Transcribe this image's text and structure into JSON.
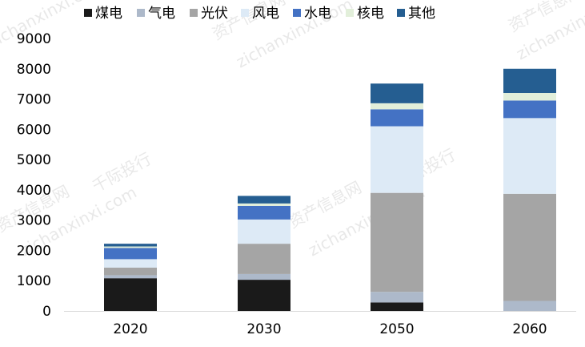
{
  "chart_data": {
    "type": "bar",
    "stacked": true,
    "title": "",
    "xlabel": "",
    "ylabel": "",
    "ylim": [
      0,
      9000
    ],
    "yticks": [
      0,
      1000,
      2000,
      3000,
      4000,
      5000,
      6000,
      7000,
      8000,
      9000
    ],
    "grid": false,
    "legend_position": "top",
    "categories": [
      "2020",
      "2030",
      "2050",
      "2060"
    ],
    "series": [
      {
        "name": "煤电",
        "color": "#1a1a1a",
        "values": [
          1080,
          1030,
          280,
          0
        ]
      },
      {
        "name": "气电",
        "color": "#adb9ca",
        "values": [
          100,
          190,
          350,
          330
        ]
      },
      {
        "name": "光伏",
        "color": "#a5a5a5",
        "values": [
          250,
          1000,
          3270,
          3540
        ]
      },
      {
        "name": "风电",
        "color": "#ddeaf6",
        "values": [
          280,
          800,
          2200,
          2500
        ]
      },
      {
        "name": "水电",
        "color": "#4472c4",
        "values": [
          370,
          450,
          560,
          580
        ]
      },
      {
        "name": "核电",
        "color": "#e2efda",
        "values": [
          50,
          80,
          200,
          250
        ]
      },
      {
        "name": "其他",
        "color": "#255e91",
        "values": [
          90,
          250,
          650,
          800
        ]
      }
    ]
  },
  "watermarks": [
    "资产信息网",
    "千际投行",
    "zichanxinxi.com"
  ]
}
